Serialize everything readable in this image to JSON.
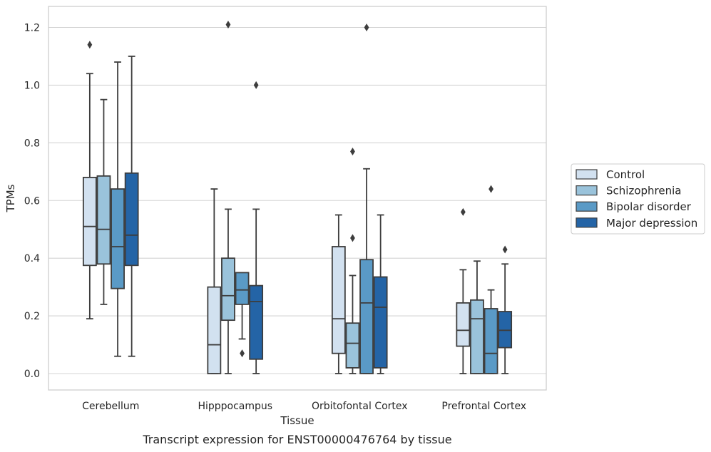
{
  "chart_data": {
    "type": "box",
    "title": "",
    "caption": "Transcript expression for ENST00000476764 by tissue",
    "xlabel": "Tissue",
    "ylabel": "TPMs",
    "ylim": [
      -0.06,
      1.27
    ],
    "yticks": [
      "0.0",
      "0.2",
      "0.4",
      "0.6",
      "0.8",
      "1.0",
      "1.2"
    ],
    "grid": "horizontal",
    "legend_position": "right",
    "categories": [
      "Cerebellum",
      "Hipppocampus",
      "Orbitofontal Cortex",
      "Prefrontal Cortex"
    ],
    "series": [
      {
        "name": "Control",
        "color": "#d2e1f0",
        "boxes": [
          {
            "whislo": 0.19,
            "q1": 0.375,
            "med": 0.51,
            "q3": 0.68,
            "whishi": 1.04,
            "fliers": [
              1.14
            ]
          },
          {
            "whislo": 0.0,
            "q1": 0.0,
            "med": 0.1,
            "q3": 0.3,
            "whishi": 0.64,
            "fliers": []
          },
          {
            "whislo": 0.0,
            "q1": 0.07,
            "med": 0.19,
            "q3": 0.44,
            "whishi": 0.55,
            "fliers": []
          },
          {
            "whislo": 0.0,
            "q1": 0.095,
            "med": 0.15,
            "q3": 0.245,
            "whishi": 0.36,
            "fliers": [
              0.56
            ]
          }
        ]
      },
      {
        "name": "Schizophrenia",
        "color": "#9ac3db",
        "boxes": [
          {
            "whislo": 0.24,
            "q1": 0.38,
            "med": 0.5,
            "q3": 0.685,
            "whishi": 0.95,
            "fliers": []
          },
          {
            "whislo": 0.0,
            "q1": 0.185,
            "med": 0.27,
            "q3": 0.4,
            "whishi": 0.57,
            "fliers": [
              1.21
            ]
          },
          {
            "whislo": 0.0,
            "q1": 0.02,
            "med": 0.105,
            "q3": 0.175,
            "whishi": 0.34,
            "fliers": [
              0.77,
              0.47
            ]
          },
          {
            "whislo": 0.0,
            "q1": 0.0,
            "med": 0.19,
            "q3": 0.255,
            "whishi": 0.39,
            "fliers": []
          }
        ]
      },
      {
        "name": "Bipolar disorder",
        "color": "#5a9ac6",
        "boxes": [
          {
            "whislo": 0.06,
            "q1": 0.295,
            "med": 0.44,
            "q3": 0.64,
            "whishi": 1.08,
            "fliers": []
          },
          {
            "whislo": 0.12,
            "q1": 0.24,
            "med": 0.29,
            "q3": 0.35,
            "whishi": 0.35,
            "fliers": [
              0.07
            ]
          },
          {
            "whislo": 0.0,
            "q1": 0.0,
            "med": 0.245,
            "q3": 0.395,
            "whishi": 0.71,
            "fliers": [
              1.2
            ]
          },
          {
            "whislo": 0.0,
            "q1": 0.0,
            "med": 0.07,
            "q3": 0.225,
            "whishi": 0.29,
            "fliers": [
              0.64
            ]
          }
        ]
      },
      {
        "name": "Major depression",
        "color": "#2464a6",
        "boxes": [
          {
            "whislo": 0.06,
            "q1": 0.375,
            "med": 0.48,
            "q3": 0.695,
            "whishi": 1.1,
            "fliers": []
          },
          {
            "whislo": 0.0,
            "q1": 0.05,
            "med": 0.25,
            "q3": 0.305,
            "whishi": 0.57,
            "fliers": [
              1.0
            ]
          },
          {
            "whislo": 0.0,
            "q1": 0.02,
            "med": 0.23,
            "q3": 0.335,
            "whishi": 0.55,
            "fliers": []
          },
          {
            "whislo": 0.0,
            "q1": 0.09,
            "med": 0.15,
            "q3": 0.215,
            "whishi": 0.38,
            "fliers": [
              0.43
            ]
          }
        ]
      }
    ]
  }
}
